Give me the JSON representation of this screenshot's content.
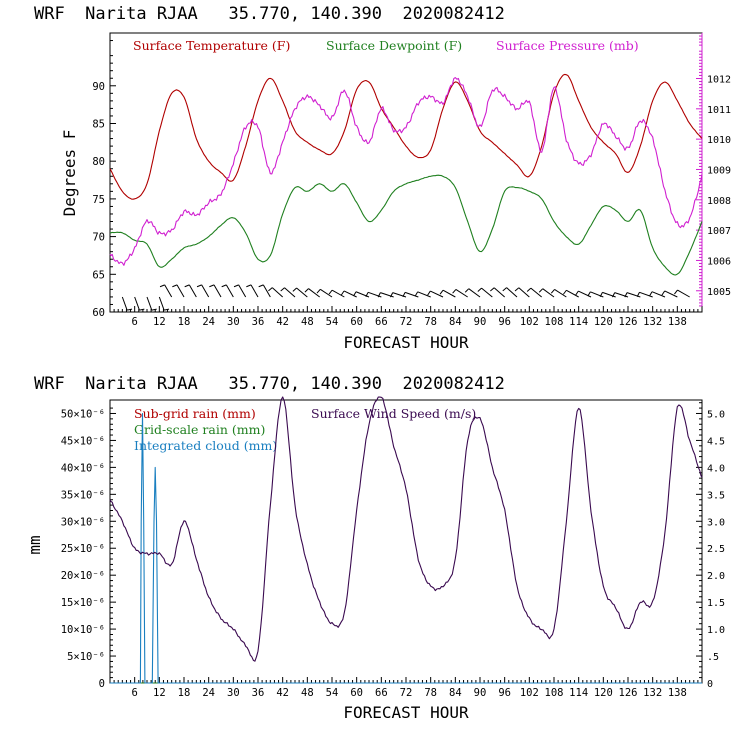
{
  "charts": [
    {
      "title": "WRF  Narita RJAA   35.770, 140.390  2020082412",
      "xlabel": "FORECAST HOUR",
      "ylabel": "Degrees F",
      "legend": [
        {
          "label": "Surface Temperature (F)",
          "color": "#b00000"
        },
        {
          "label": "Surface Dewpoint (F)",
          "color": "#208020"
        },
        {
          "label": "Surface Pressure (mb)",
          "color": "#d020d0"
        }
      ],
      "x_ticks": [
        "6",
        "12",
        "18",
        "24",
        "30",
        "36",
        "42",
        "48",
        "54",
        "60",
        "66",
        "72",
        "78",
        "84",
        "90",
        "96",
        "102",
        "108",
        "114",
        "120",
        "126",
        "132",
        "138"
      ],
      "y_ticks": [
        "60",
        "65",
        "70",
        "75",
        "80",
        "85",
        "90"
      ],
      "y2_ticks": [
        "1005",
        "1006",
        "1007",
        "1008",
        "1009",
        "1010",
        "1011",
        "1012"
      ]
    },
    {
      "title": "WRF  Narita RJAA   35.770, 140.390  2020082412",
      "xlabel": "FORECAST HOUR",
      "ylabel": "mm",
      "legend": [
        {
          "label": "Sub-grid rain (mm)",
          "color": "#b00000"
        },
        {
          "label": "Grid-scale rain (mm)",
          "color": "#208020"
        },
        {
          "label": "Integrated cloud (mm)",
          "color": "#1a7fc0"
        },
        {
          "label": "Surface Wind Speed (m/s)",
          "color": "#3a0a50"
        }
      ],
      "x_ticks": [
        "6",
        "12",
        "18",
        "24",
        "30",
        "36",
        "42",
        "48",
        "54",
        "60",
        "66",
        "72",
        "78",
        "84",
        "90",
        "96",
        "102",
        "108",
        "114",
        "120",
        "126",
        "132",
        "138"
      ],
      "y_ticks": [
        "0",
        "5×10⁻⁶",
        "10×10⁻⁶",
        "15×10⁻⁶",
        "20×10⁻⁶",
        "25×10⁻⁶",
        "30×10⁻⁶",
        "35×10⁻⁶",
        "40×10⁻⁶",
        "45×10⁻⁶",
        "50×10⁻⁶"
      ],
      "y2_ticks": [
        "0",
        ".5",
        "1.0",
        "1.5",
        "2.0",
        "2.5",
        "3.0",
        "3.5",
        "4.0",
        "4.5",
        "5.0"
      ]
    }
  ],
  "chart_data": [
    {
      "type": "line",
      "title": "WRF  Narita RJAA   35.770, 140.390  2020082412",
      "xlabel": "FORECAST HOUR",
      "ylabel": "Degrees F",
      "xlim": [
        0,
        144
      ],
      "ylim": [
        60,
        97
      ],
      "y2lim": [
        1004.3,
        1013.5
      ],
      "series": [
        {
          "name": "Surface Temperature (F)",
          "axis": "left",
          "color": "#b00000",
          "x": [
            0,
            3,
            6,
            9,
            12,
            15,
            18,
            21,
            24,
            27,
            30,
            33,
            36,
            39,
            42,
            45,
            48,
            51,
            54,
            57,
            60,
            63,
            66,
            69,
            72,
            75,
            78,
            81,
            84,
            87,
            90,
            93,
            96,
            99,
            102,
            105,
            108,
            111,
            114,
            117,
            120,
            123,
            126,
            129,
            132,
            135,
            138,
            141,
            144
          ],
          "y": [
            79,
            76,
            75,
            77,
            84,
            89,
            88.5,
            83,
            80,
            78.5,
            77.5,
            82,
            88,
            91,
            88,
            84,
            82.5,
            81.5,
            81,
            84,
            89.5,
            90.5,
            87,
            84.5,
            82,
            80.5,
            81.5,
            87,
            90.5,
            88,
            84,
            82.5,
            81,
            79.5,
            78,
            82,
            89,
            91.5,
            88,
            84.5,
            82.5,
            81,
            78.5,
            82,
            88,
            90.5,
            88,
            85,
            83
          ]
        },
        {
          "name": "Surface Dewpoint (F)",
          "axis": "left",
          "color": "#208020",
          "x": [
            0,
            3,
            6,
            9,
            12,
            15,
            18,
            21,
            24,
            27,
            30,
            33,
            36,
            39,
            42,
            45,
            48,
            51,
            54,
            57,
            60,
            63,
            66,
            69,
            72,
            75,
            78,
            81,
            84,
            87,
            90,
            93,
            96,
            99,
            102,
            105,
            108,
            111,
            114,
            117,
            120,
            123,
            126,
            129,
            132,
            135,
            138,
            141,
            144
          ],
          "y": [
            70.5,
            70.5,
            69.5,
            69,
            66,
            67,
            68.5,
            69,
            70,
            71.5,
            72.5,
            70.5,
            67,
            67.5,
            73,
            76.5,
            76,
            77,
            76,
            77,
            74.5,
            72,
            73.5,
            76,
            77,
            77.5,
            78,
            78,
            76.5,
            72,
            68,
            71,
            76,
            76.5,
            76,
            75,
            72,
            70,
            69,
            71.5,
            74,
            73.5,
            72,
            73.5,
            68.5,
            66,
            65,
            68,
            72
          ]
        },
        {
          "name": "Surface Pressure (mb)",
          "axis": "right",
          "color": "#d020d0",
          "x": [
            0,
            3,
            6,
            9,
            12,
            15,
            18,
            21,
            24,
            27,
            30,
            33,
            36,
            39,
            42,
            45,
            48,
            51,
            54,
            57,
            60,
            63,
            66,
            69,
            72,
            75,
            78,
            81,
            84,
            87,
            90,
            93,
            96,
            99,
            102,
            105,
            108,
            111,
            114,
            117,
            120,
            123,
            126,
            129,
            132,
            135,
            138,
            141,
            144
          ],
          "y": [
            1006.2,
            1005.9,
            1006.4,
            1007.3,
            1006.9,
            1007.0,
            1007.6,
            1007.5,
            1007.9,
            1008.2,
            1009.2,
            1010.4,
            1010.4,
            1008.9,
            1009.9,
            1011.0,
            1011.4,
            1011.1,
            1010.7,
            1011.6,
            1010.4,
            1009.9,
            1011.0,
            1010.3,
            1010.4,
            1011.2,
            1011.4,
            1011.2,
            1012.0,
            1011.4,
            1010.4,
            1011.6,
            1011.4,
            1011.0,
            1011.2,
            1009.6,
            1011.7,
            1010.0,
            1009.2,
            1009.5,
            1010.5,
            1010.1,
            1009.7,
            1010.6,
            1010.0,
            1008.3,
            1007.2,
            1007.4,
            1008.8
          ]
        }
      ]
    },
    {
      "type": "line",
      "title": "WRF  Narita RJAA   35.770, 140.390  2020082412",
      "xlabel": "FORECAST HOUR",
      "ylabel": "mm",
      "xlim": [
        0,
        144
      ],
      "ylim": [
        0,
        5.25e-05
      ],
      "y2lim": [
        0,
        5.25
      ],
      "series": [
        {
          "name": "Sub-grid rain (mm)",
          "axis": "left",
          "color": "#b00000",
          "x": [
            0,
            144
          ],
          "y": [
            0,
            0
          ]
        },
        {
          "name": "Grid-scale rain (mm)",
          "axis": "left",
          "color": "#208020",
          "x": [
            0,
            144
          ],
          "y": [
            0,
            0
          ]
        },
        {
          "name": "Integrated cloud (mm)",
          "axis": "left",
          "color": "#1a7fc0",
          "x": [
            0,
            7.4,
            7.6,
            7.9,
            8.2,
            8.5,
            10.3,
            10.7,
            11.0,
            11.3,
            11.7,
            144
          ],
          "y": [
            0,
            0,
            3e-05,
            5e-05,
            3e-05,
            0,
            0,
            3e-05,
            4e-05,
            3e-05,
            0,
            0
          ]
        },
        {
          "name": "Surface Wind Speed (m/s)",
          "axis": "right",
          "color": "#3a0a50",
          "x": [
            0,
            3,
            6,
            9,
            12,
            15,
            18,
            21,
            24,
            27,
            30,
            33,
            36,
            39,
            42,
            45,
            48,
            51,
            54,
            57,
            60,
            63,
            66,
            69,
            72,
            75,
            78,
            81,
            84,
            87,
            90,
            93,
            96,
            99,
            102,
            105,
            108,
            111,
            114,
            117,
            120,
            123,
            126,
            129,
            132,
            135,
            138,
            141,
            144
          ],
          "y": [
            3.4,
            3.0,
            2.5,
            2.4,
            2.4,
            2.2,
            3.0,
            2.3,
            1.6,
            1.2,
            1.0,
            0.7,
            0.6,
            3.3,
            5.3,
            3.3,
            2.2,
            1.5,
            1.1,
            1.3,
            3.2,
            4.8,
            5.3,
            4.4,
            3.6,
            2.3,
            1.8,
            1.8,
            2.3,
            4.5,
            4.9,
            4.0,
            3.2,
            1.8,
            1.2,
            1.0,
            1.0,
            3.0,
            5.1,
            3.2,
            1.8,
            1.4,
            1.0,
            1.5,
            1.5,
            2.8,
            5.1,
            4.5,
            3.8
          ]
        }
      ]
    }
  ]
}
